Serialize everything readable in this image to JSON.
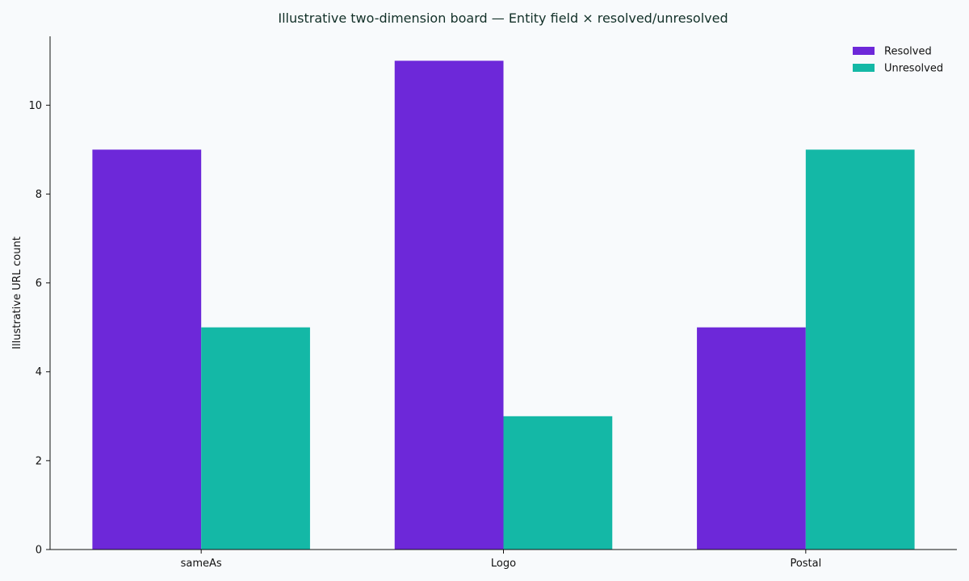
{
  "chart_data": {
    "type": "bar",
    "title": "Illustrative two-dimension board — Entity field × resolved/unresolved",
    "xlabel": "",
    "ylabel": "Illustrative URL count",
    "categories": [
      "sameAs",
      "Logo",
      "Postal"
    ],
    "series": [
      {
        "name": "Resolved",
        "values": [
          9,
          11,
          5
        ],
        "color": "#6d28d9"
      },
      {
        "name": "Unresolved",
        "values": [
          5,
          3,
          9
        ],
        "color": "#14b8a6"
      }
    ],
    "ylim": [
      0,
      11.55
    ],
    "yticks": [
      0,
      2,
      4,
      6,
      8,
      10
    ],
    "grid": false,
    "legend_position": "top-right"
  }
}
